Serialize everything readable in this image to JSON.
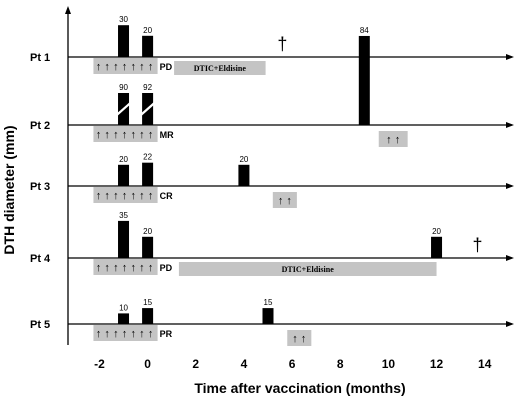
{
  "chart_data": {
    "type": "bar",
    "xlabel": "Time after vaccination (months)",
    "ylabel": "DTH diameter (mm)",
    "xticks": [
      "-2",
      "0",
      "2",
      "4",
      "6",
      "8",
      "10",
      "12",
      "14"
    ],
    "xlim": [
      -2.6,
      15.3
    ],
    "patients": [
      {
        "label": "Pt 1",
        "response": "PD",
        "bars": [
          {
            "x": -1.0,
            "value": 30,
            "label": "30",
            "broken": false
          },
          {
            "x": 0.0,
            "value": 20,
            "label": "20",
            "broken": false
          }
        ],
        "vaccinations": [
          "↑",
          "↑",
          "↑",
          "↑",
          "↑",
          "↑",
          "↑"
        ],
        "vacc_start": -2.0,
        "vacc_end": 0.0,
        "later_vaccinations": [],
        "therapy": {
          "label": "DTIC+Eldisine",
          "start": 1.1,
          "end": 4.9
        },
        "death": {
          "x": 5.6,
          "symbol": "†"
        }
      },
      {
        "label": "Pt 2",
        "response": "MR",
        "bars": [
          {
            "x": -1.0,
            "value": 90,
            "label": "90",
            "broken": true
          },
          {
            "x": 0.0,
            "value": 92,
            "label": "92",
            "broken": true
          },
          {
            "x": 9.0,
            "value": 84,
            "label": "84",
            "broken": false
          }
        ],
        "vaccinations": [
          "↑",
          "↑",
          "↑",
          "↑",
          "↑",
          "↑",
          "↑"
        ],
        "vacc_start": -2.0,
        "vacc_end": 0.0,
        "later_vaccinations": [
          {
            "symbols": "↑ ↑",
            "start": 9.6,
            "end": 10.8
          }
        ],
        "therapy": null,
        "death": null
      },
      {
        "label": "Pt 3",
        "response": "CR",
        "bars": [
          {
            "x": -1.0,
            "value": 20,
            "label": "20",
            "broken": false
          },
          {
            "x": 0.0,
            "value": 22,
            "label": "22",
            "broken": false
          },
          {
            "x": 4.0,
            "value": 20,
            "label": "20",
            "broken": false
          }
        ],
        "vaccinations": [
          "↑",
          "↑",
          "↑",
          "↑",
          "↑",
          "↑",
          "↑"
        ],
        "vacc_start": -2.0,
        "vacc_end": 0.0,
        "later_vaccinations": [
          {
            "symbols": "↑ ↑",
            "start": 5.2,
            "end": 6.2
          }
        ],
        "therapy": null,
        "death": null
      },
      {
        "label": "Pt 4",
        "response": "PD",
        "bars": [
          {
            "x": -1.0,
            "value": 35,
            "label": "35",
            "broken": false
          },
          {
            "x": 0.0,
            "value": 20,
            "label": "20",
            "broken": false
          },
          {
            "x": 12.0,
            "value": 20,
            "label": "20",
            "broken": false
          }
        ],
        "vaccinations": [
          "↑",
          "↑",
          "↑",
          "↑",
          "↑",
          "↑",
          "↑"
        ],
        "vacc_start": -2.0,
        "vacc_end": 0.0,
        "later_vaccinations": [],
        "therapy": {
          "label": "DTIC+Eldisine",
          "start": 1.3,
          "end": 12.0
        },
        "death": {
          "x": 13.7,
          "symbol": "†"
        }
      },
      {
        "label": "Pt 5",
        "response": "PR",
        "bars": [
          {
            "x": -1.0,
            "value": 10,
            "label": "10",
            "broken": false
          },
          {
            "x": 0.0,
            "value": 15,
            "label": "15",
            "broken": false
          },
          {
            "x": 5.0,
            "value": 15,
            "label": "15",
            "broken": false
          }
        ],
        "vaccinations": [
          "↑",
          "↑",
          "↑",
          "↑",
          "↑",
          "↑",
          "↑"
        ],
        "vacc_start": -2.0,
        "vacc_end": 0.0,
        "later_vaccinations": [
          {
            "symbols": "↑ ↑",
            "start": 5.8,
            "end": 6.8
          }
        ],
        "therapy": null,
        "death": null
      }
    ],
    "colors": {
      "bars": "#000000",
      "boxes": "#c4c4c4",
      "axis": "#000000"
    }
  }
}
